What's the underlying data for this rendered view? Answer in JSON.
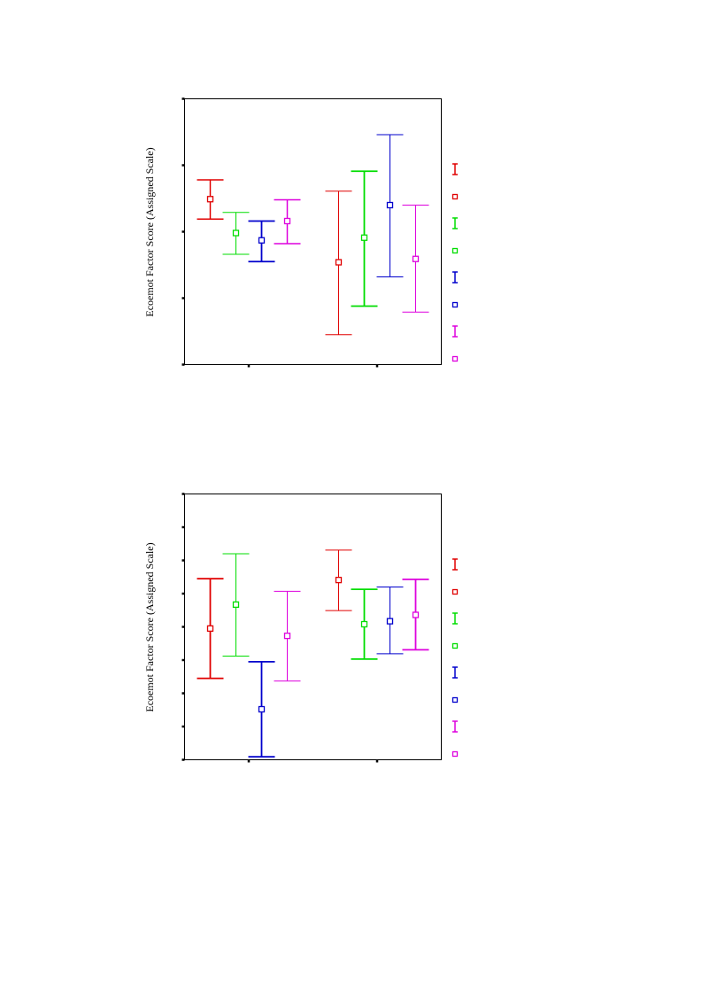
{
  "chart_data": [
    {
      "type": "errorbar",
      "ylabel": "Ecoemot Factor Score (Assigned Scale)",
      "ylim": [
        -2,
        2
      ],
      "yticks": [
        -2,
        -1,
        0,
        1,
        2
      ],
      "xlim": [
        0,
        2
      ],
      "xticks": [
        0.5,
        1.5
      ],
      "legend_position": "right",
      "series": [
        {
          "color": "#e00000",
          "points": [
            {
              "x": 0.2,
              "mean": 0.49,
              "low": 0.19,
              "high": 0.78,
              "stroke": 1.5
            },
            {
              "x": 1.2,
              "mean": -0.46,
              "low": -1.55,
              "high": 0.61,
              "stroke": 1.0
            }
          ]
        },
        {
          "color": "#00dd00",
          "points": [
            {
              "x": 0.4,
              "mean": -0.02,
              "low": -0.34,
              "high": 0.29,
              "stroke": 1.0
            },
            {
              "x": 1.4,
              "mean": -0.09,
              "low": -1.12,
              "high": 0.91,
              "stroke": 1.8
            }
          ]
        },
        {
          "color": "#0000cc",
          "points": [
            {
              "x": 0.6,
              "mean": -0.13,
              "low": -0.45,
              "high": 0.16,
              "stroke": 1.8
            },
            {
              "x": 1.6,
              "mean": 0.4,
              "low": -0.68,
              "high": 1.46,
              "stroke": 1.0
            }
          ]
        },
        {
          "color": "#dd00dd",
          "points": [
            {
              "x": 0.8,
              "mean": 0.16,
              "low": -0.18,
              "high": 0.48,
              "stroke": 1.5
            },
            {
              "x": 1.8,
              "mean": -0.41,
              "low": -1.21,
              "high": 0.4,
              "stroke": 1.0
            }
          ]
        }
      ]
    },
    {
      "type": "errorbar",
      "ylabel": "Ecoemot Factor Score (Assigned Scale)",
      "ylim": [
        -4,
        4
      ],
      "yticks": [
        -4,
        -3,
        -2,
        -1,
        0,
        1,
        2,
        3,
        4
      ],
      "xlim": [
        0,
        2
      ],
      "xticks": [
        0.5,
        1.5
      ],
      "legend_position": "right",
      "series": [
        {
          "color": "#e00000",
          "points": [
            {
              "x": 0.2,
              "mean": -0.05,
              "low": -1.55,
              "high": 1.45,
              "stroke": 1.8
            },
            {
              "x": 1.2,
              "mean": 1.41,
              "low": 0.49,
              "high": 2.31,
              "stroke": 1.0
            }
          ]
        },
        {
          "color": "#00dd00",
          "points": [
            {
              "x": 0.4,
              "mean": 0.67,
              "low": -0.88,
              "high": 2.2,
              "stroke": 1.0
            },
            {
              "x": 1.4,
              "mean": 0.08,
              "low": -0.97,
              "high": 1.13,
              "stroke": 1.8
            }
          ]
        },
        {
          "color": "#0000cc",
          "points": [
            {
              "x": 0.6,
              "mean": -2.48,
              "low": -3.91,
              "high": -1.05,
              "stroke": 1.8
            },
            {
              "x": 1.6,
              "mean": 0.17,
              "low": -0.81,
              "high": 1.2,
              "stroke": 1.0
            }
          ]
        },
        {
          "color": "#dd00dd",
          "points": [
            {
              "x": 0.8,
              "mean": -0.27,
              "low": -1.63,
              "high": 1.07,
              "stroke": 1.0
            },
            {
              "x": 1.8,
              "mean": 0.36,
              "low": -0.69,
              "high": 1.43,
              "stroke": 1.8
            }
          ]
        }
      ]
    }
  ]
}
